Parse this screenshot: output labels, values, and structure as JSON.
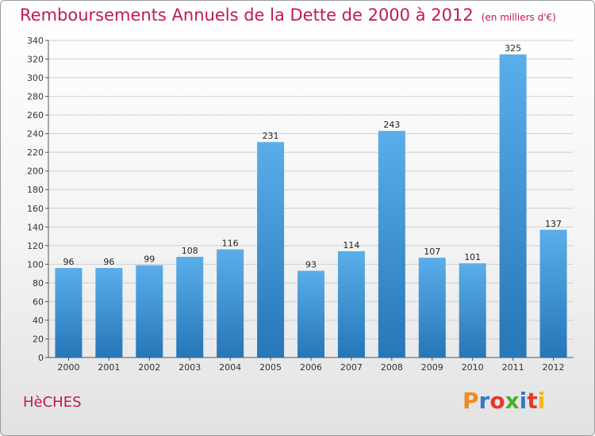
{
  "header": {
    "title": "Remboursements Annuels de la Dette de 2000 à 2012",
    "subtitle": "(en milliers d'€)"
  },
  "footer": {
    "commune": "HèCHES",
    "logo": "Proxiti",
    "logo_colors": [
      "#f08a1d",
      "#3a78c8",
      "#e23a2a",
      "#4caf2e",
      "#3a78c8",
      "#e23a2a",
      "#f0b81d"
    ]
  },
  "chart_data": {
    "type": "bar",
    "title": "Remboursements Annuels de la Dette de 2000 à 2012",
    "subtitle": "(en milliers d'€)",
    "xlabel": "",
    "ylabel": "",
    "categories": [
      "2000",
      "2001",
      "2002",
      "2003",
      "2004",
      "2005",
      "2006",
      "2007",
      "2008",
      "2009",
      "2010",
      "2011",
      "2012"
    ],
    "values": [
      96,
      96,
      99,
      108,
      116,
      231,
      93,
      114,
      243,
      107,
      101,
      325,
      137
    ],
    "ylim": [
      0,
      340
    ],
    "yticks": [
      0,
      20,
      40,
      60,
      80,
      100,
      120,
      140,
      160,
      180,
      200,
      220,
      240,
      260,
      280,
      300,
      320,
      340
    ],
    "grid": true,
    "legend": "none",
    "colors": {
      "bar_light": "#5aaeea",
      "bar_dark": "#2676b8",
      "grid": "#d0d0d0"
    }
  }
}
